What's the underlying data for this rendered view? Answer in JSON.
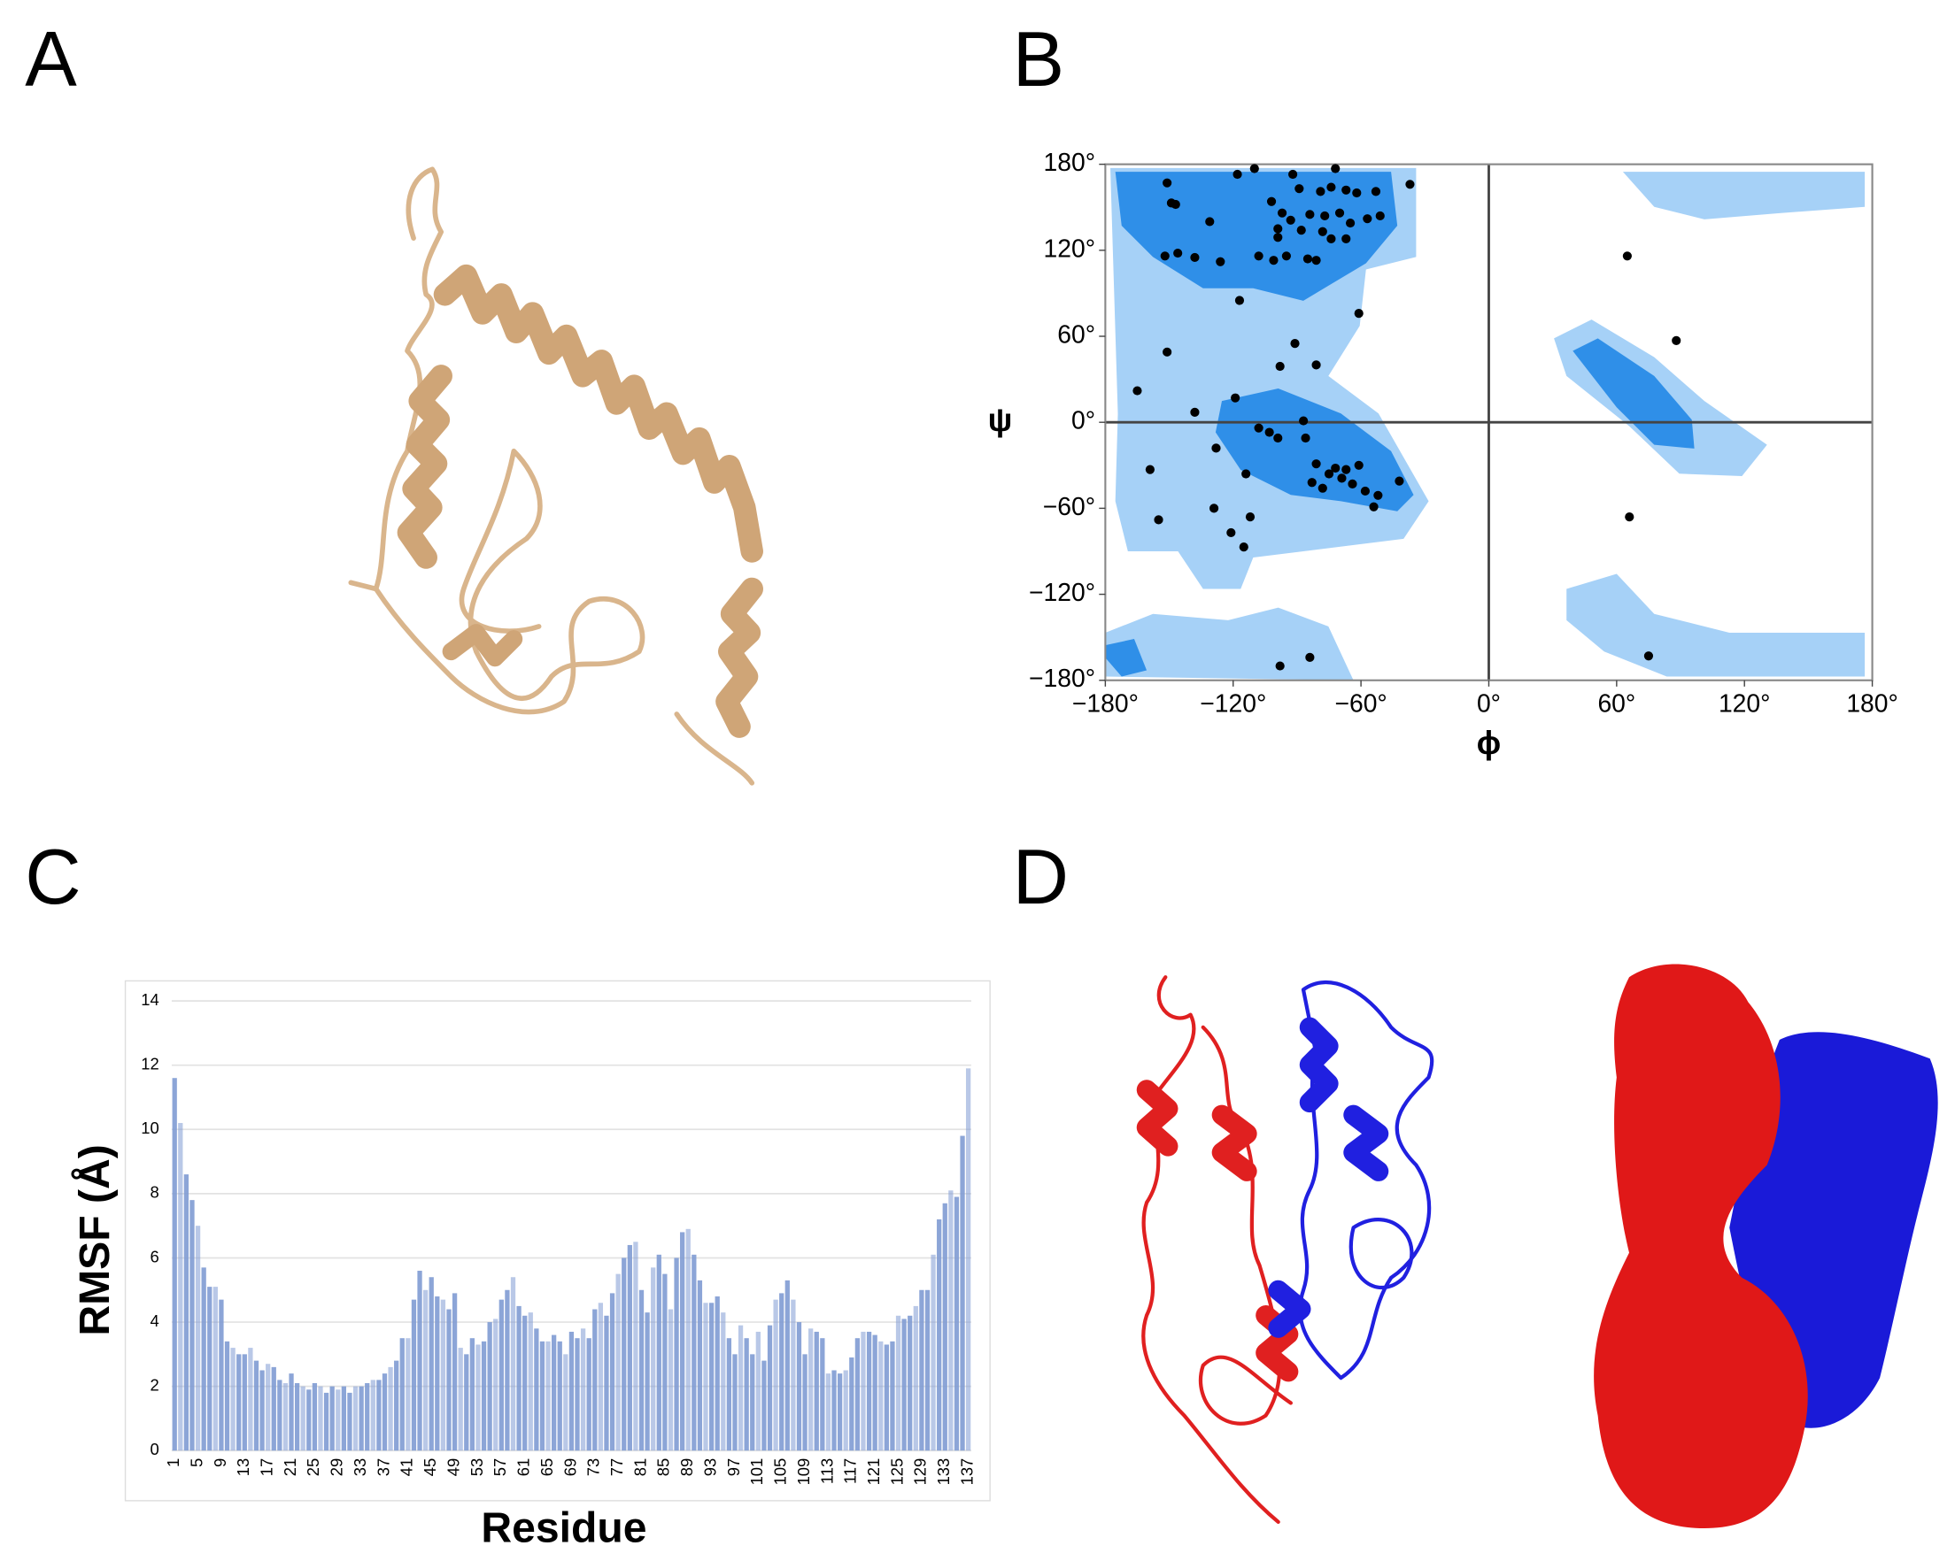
{
  "panel_labels": [
    "A",
    "B",
    "C",
    "D"
  ],
  "chart_data": [
    {
      "type": "scatter",
      "xlabel": "ϕ",
      "ylabel": "ψ",
      "color": "#000000",
      "xlim": [
        -180,
        180
      ],
      "ylim": [
        -180,
        180
      ],
      "xticks": [
        {
          "value": -180,
          "label": "−180°"
        },
        {
          "value": -120,
          "label": "−120°"
        },
        {
          "value": -60,
          "label": "−60°"
        },
        {
          "value": 0,
          "label": "0°"
        },
        {
          "value": 60,
          "label": "60°"
        },
        {
          "value": 120,
          "label": "120°"
        },
        {
          "value": 180,
          "label": "180°"
        }
      ],
      "yticks": [
        {
          "value": 180,
          "label": "180°"
        },
        {
          "value": 120,
          "label": "120°"
        },
        {
          "value": 60,
          "label": "60°"
        },
        {
          "value": 0,
          "label": "0°"
        },
        {
          "value": -60,
          "label": "−60°"
        },
        {
          "value": -120,
          "label": "−120°"
        },
        {
          "value": -180,
          "label": "−180°"
        }
      ],
      "x": [
        -151,
        -149,
        -147,
        -110,
        -118,
        -92,
        -72,
        -102,
        -89,
        -79,
        -74,
        -67,
        -62,
        -53,
        -37,
        -131,
        -97,
        -99,
        -93,
        -84,
        -77,
        -70,
        -65,
        -57,
        -51,
        -99,
        -88,
        -78,
        -74,
        -67,
        -152,
        -146,
        -138,
        -126,
        -108,
        -101,
        -95,
        -85,
        -81,
        -117,
        -61,
        -91,
        -81,
        -151,
        -98,
        -165,
        -138,
        -119,
        -159,
        -128,
        -114,
        -108,
        -103,
        -99,
        -87,
        -86,
        -81,
        -75,
        -69,
        -64,
        -58,
        -52,
        -42,
        -83,
        -78,
        -72,
        -67,
        -61,
        -54,
        -129,
        -112,
        -121,
        -115,
        -155,
        -98,
        -84,
        65,
        88,
        66,
        75
      ],
      "values": [
        167,
        153,
        152,
        177,
        173,
        173,
        177,
        154,
        163,
        161,
        164,
        162,
        160,
        161,
        166,
        140,
        146,
        135,
        141,
        145,
        144,
        146,
        139,
        142,
        144,
        129,
        134,
        133,
        128,
        128,
        116,
        118,
        115,
        112,
        116,
        113,
        116,
        114,
        113,
        85,
        76,
        55,
        40,
        49,
        39,
        22,
        7,
        17,
        -33,
        -18,
        -36,
        -4,
        -7,
        -11,
        1,
        -11,
        -29,
        -36,
        -39,
        -43,
        -48,
        -51,
        -41,
        -42,
        -46,
        -32,
        -33,
        -30,
        -59,
        -60,
        -66,
        -77,
        -87,
        -68,
        -170,
        -164,
        116,
        57,
        -66,
        -163
      ]
    },
    {
      "type": "bar",
      "xlabel": "Residue",
      "ylabel": "RMSF (Å)",
      "color": "#7f9bd3",
      "grid": true,
      "ylim": [
        0,
        14
      ],
      "yticks": [
        0,
        2,
        4,
        6,
        8,
        10,
        12,
        14
      ],
      "categories": [
        "1",
        null,
        null,
        null,
        "5",
        null,
        null,
        null,
        "9",
        null,
        null,
        null,
        "13",
        null,
        null,
        null,
        "17",
        null,
        null,
        null,
        "21",
        null,
        null,
        null,
        "25",
        null,
        null,
        null,
        "29",
        null,
        null,
        null,
        "33",
        null,
        null,
        null,
        "37",
        null,
        null,
        null,
        "41",
        null,
        null,
        null,
        "45",
        null,
        null,
        null,
        "49",
        null,
        null,
        null,
        "53",
        null,
        null,
        null,
        "57",
        null,
        null,
        null,
        "61",
        null,
        null,
        null,
        "65",
        null,
        null,
        null,
        "69",
        null,
        null,
        null,
        "73",
        null,
        null,
        null,
        "77",
        null,
        null,
        null,
        "81",
        null,
        null,
        null,
        "85",
        null,
        null,
        null,
        "89",
        null,
        null,
        null,
        "93",
        null,
        null,
        null,
        "97",
        null,
        null,
        null,
        "101",
        null,
        null,
        null,
        "105",
        null,
        null,
        null,
        "109",
        null,
        null,
        null,
        "113",
        null,
        null,
        null,
        "117",
        null,
        null,
        null,
        "121",
        null,
        null,
        null,
        "125",
        null,
        null,
        null,
        "129",
        null,
        null,
        null,
        "133",
        null,
        null,
        null,
        "137"
      ],
      "values": [
        11.6,
        10.2,
        8.6,
        7.8,
        7.0,
        5.7,
        5.1,
        5.1,
        4.7,
        3.4,
        3.2,
        3.0,
        3.0,
        3.2,
        2.8,
        2.5,
        2.7,
        2.6,
        2.2,
        2.1,
        2.4,
        2.1,
        2.0,
        1.9,
        2.1,
        2.0,
        1.8,
        2.0,
        1.9,
        2.0,
        1.8,
        2.0,
        2.0,
        2.1,
        2.2,
        2.2,
        2.4,
        2.6,
        2.8,
        3.5,
        3.5,
        4.7,
        5.6,
        5.0,
        5.4,
        4.8,
        4.7,
        4.4,
        4.9,
        3.2,
        3.0,
        3.5,
        3.3,
        3.4,
        4.0,
        4.1,
        4.7,
        5.0,
        5.4,
        4.5,
        4.2,
        4.3,
        3.8,
        3.4,
        3.4,
        3.6,
        3.4,
        3.0,
        3.7,
        3.5,
        3.8,
        3.5,
        4.4,
        4.6,
        4.2,
        4.9,
        5.5,
        6.0,
        6.4,
        6.5,
        5.0,
        4.3,
        5.7,
        6.1,
        5.5,
        4.4,
        6.0,
        6.8,
        6.9,
        6.1,
        5.3,
        4.6,
        4.6,
        4.8,
        4.3,
        3.5,
        3.0,
        3.9,
        3.5,
        3.0,
        3.7,
        2.8,
        3.9,
        4.7,
        4.9,
        5.3,
        4.7,
        4.0,
        3.0,
        3.8,
        3.7,
        3.5,
        2.4,
        2.5,
        2.4,
        2.5,
        2.9,
        3.5,
        3.7,
        3.7,
        3.6,
        3.4,
        3.3,
        3.4,
        4.2,
        4.1,
        4.2,
        4.5,
        5.0,
        5.0,
        6.1,
        7.2,
        7.7,
        8.1,
        7.9,
        9.8,
        11.9
      ]
    }
  ]
}
